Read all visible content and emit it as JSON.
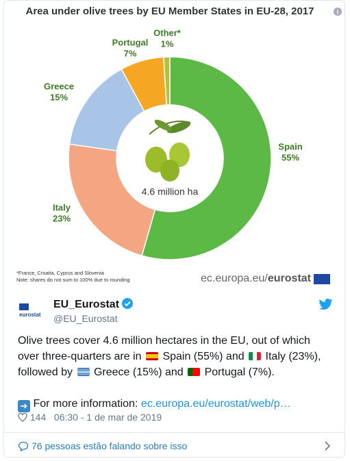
{
  "chart_data": {
    "type": "pie",
    "title": "Area under olive trees by EU Member States in EU-28, 2017",
    "categories": [
      "Spain",
      "Italy",
      "Greece",
      "Portugal",
      "Other*"
    ],
    "values": [
      55,
      23,
      15,
      7,
      1
    ],
    "value_labels": [
      "55%",
      "23%",
      "15%",
      "7%",
      "1%"
    ],
    "colors": [
      "#5cb946",
      "#f4a582",
      "#a8c5e8",
      "#f5a623",
      "#b3c23a"
    ],
    "center_label": "4.6 million ha",
    "footnotes": [
      "*France, Croatia, Cyprus and Slovenia",
      "Note: shares do not sum to 100% due to rounding"
    ],
    "source": "ec.europa.eu/",
    "source_bold": "eurostat"
  },
  "tweet": {
    "avatar": "eurostat",
    "name": "EU_Eurostat",
    "handle": "@EU_Eurostat",
    "text": [
      "Olive trees cover 4.6 million hectares in the EU, out of which over three-quarters are in",
      "Spain (55%) and",
      "Italy (23%), followed by",
      "Greece (15%) and",
      "Portugal (7%)."
    ],
    "more": "For more information:",
    "link": "ec.europa.eu/eurostat/web/p…",
    "likes": "144",
    "time": "06:30 - 1 de mar de 2019",
    "footer": "76 pessoas estão falando sobre isso"
  }
}
